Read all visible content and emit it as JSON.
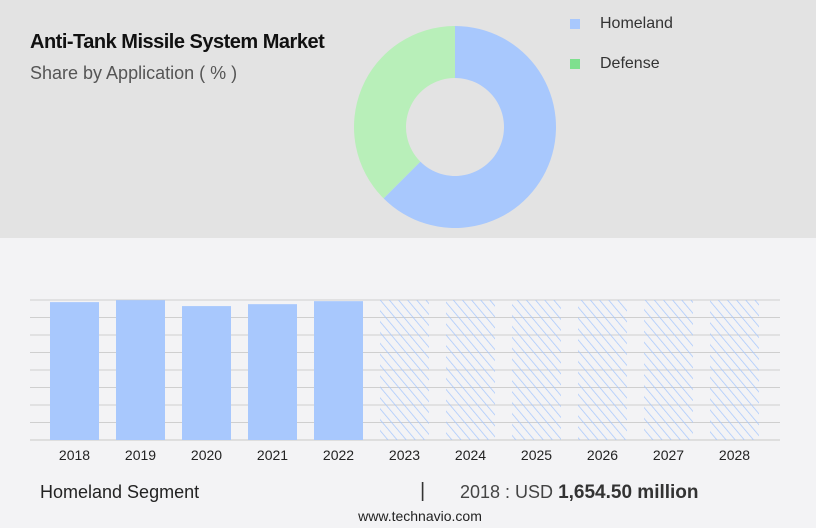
{
  "header": {
    "title": "Anti-Tank Missile System Market",
    "subtitle": "Share by Application ( % )"
  },
  "chart_data": [
    {
      "type": "pie",
      "variant": "donut",
      "slices": [
        {
          "name": "Homeland",
          "value": 62.5,
          "color": "#a8c8fd"
        },
        {
          "name": "Defense",
          "value": 37.5,
          "color": "#b8efb9"
        }
      ],
      "legend": [
        {
          "label": "Homeland",
          "color": "#a8c8fd"
        },
        {
          "label": "Defense",
          "color": "#7ee08e"
        }
      ],
      "legend_placement": "top-right"
    },
    {
      "type": "bar",
      "categories": [
        "2018",
        "2019",
        "2020",
        "2021",
        "2022",
        "2023",
        "2024",
        "2025",
        "2026",
        "2027",
        "2028"
      ],
      "values": [
        1654.5,
        1678,
        1607,
        1630,
        1666,
        null,
        null,
        null,
        null,
        null,
        null
      ],
      "forecast_categories": [
        "2023",
        "2024",
        "2025",
        "2026",
        "2027",
        "2028"
      ],
      "ylim": [
        0,
        1680
      ],
      "grid": true,
      "color": "#a8c8fd"
    }
  ],
  "footer": {
    "segment": "Homeland Segment",
    "separator": "|",
    "value_prefix": "2018 : USD ",
    "value": "1,654.50 million",
    "site": "www.technavio.com"
  }
}
